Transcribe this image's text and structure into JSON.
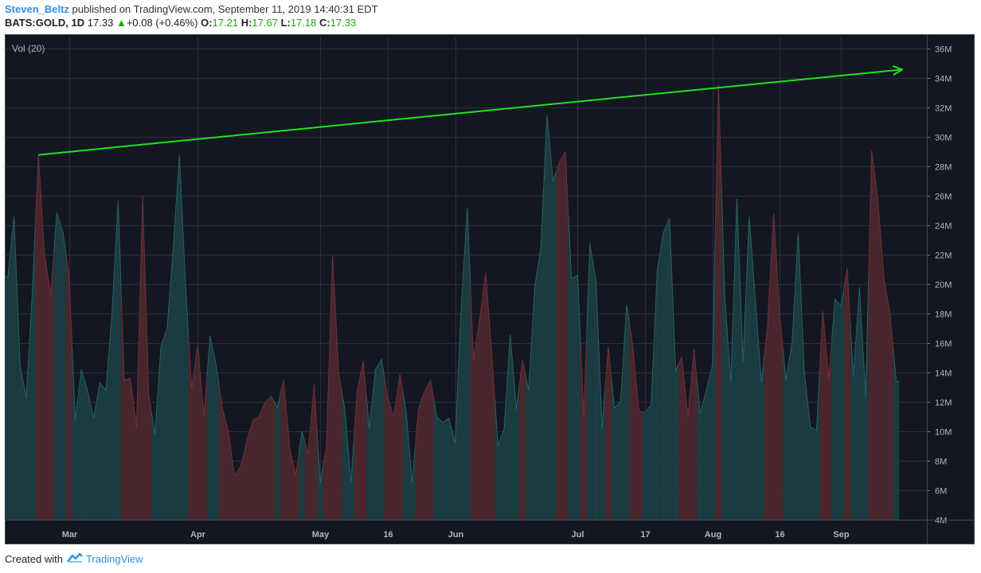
{
  "header": {
    "author": "Steven_Beltz",
    "published_text": "published on TradingView.com, September 11, 2019 14:40:31 EDT",
    "symbol": "BATS:GOLD, 1D",
    "last": "17.33",
    "change": "+0.08 (+0.46%)",
    "o_label": "O:",
    "o_value": "17.21",
    "h_label": "H:",
    "h_value": "17.67",
    "l_label": "L:",
    "l_value": "17.18",
    "c_label": "C:",
    "c_value": "17.33"
  },
  "footer": {
    "created_with": "Created with",
    "brand": "TradingView"
  },
  "colors": {
    "background": "#131722",
    "grid": "#2a2e39",
    "up_fill": "#1a3c40",
    "down_fill": "#4a262c",
    "up_line": "#2b5f63",
    "down_line": "#6e2f38",
    "trendline": "#22e01e",
    "axis_text": "#b2b5be"
  },
  "chart_data": {
    "type": "area",
    "indicator_label": "Vol (20)",
    "y_unit": "M",
    "ylim": [
      4,
      37
    ],
    "y_ticks": [
      4,
      6,
      8,
      10,
      12,
      14,
      16,
      18,
      20,
      22,
      24,
      26,
      28,
      30,
      32,
      34,
      36
    ],
    "y_tick_labels": [
      "4M",
      "6M",
      "8M",
      "10M",
      "12M",
      "14M",
      "16M",
      "18M",
      "20M",
      "22M",
      "24M",
      "26M",
      "28M",
      "30M",
      "32M",
      "34M",
      "36M"
    ],
    "x_ticks": [
      {
        "label": "Mar",
        "index": 10
      },
      {
        "label": "Apr",
        "index": 31
      },
      {
        "label": "May",
        "index": 51
      },
      {
        "label": "16",
        "index": 62
      },
      {
        "label": "Jun",
        "index": 73
      },
      {
        "label": "Jul",
        "index": 93
      },
      {
        "label": "17",
        "index": 104
      },
      {
        "label": "Aug",
        "index": 115
      },
      {
        "label": "16",
        "index": 126
      },
      {
        "label": "Sep",
        "index": 136
      }
    ],
    "x_range": [
      -0.5,
      150
    ],
    "volume_millions": [
      20.5,
      24.6,
      14.5,
      12.3,
      19.5,
      28.8,
      22.0,
      19.3,
      24.9,
      23.5,
      20.6,
      10.8,
      14.2,
      12.8,
      10.9,
      13.3,
      12.8,
      18.0,
      25.7,
      13.5,
      13.6,
      10.3,
      26.0,
      12.5,
      9.8,
      15.8,
      17.0,
      22.5,
      28.8,
      20.0,
      12.9,
      15.9,
      11.0,
      16.5,
      14.5,
      11.6,
      10.0,
      7.0,
      7.6,
      9.3,
      10.8,
      11.0,
      12.0,
      12.4,
      11.6,
      13.5,
      8.9,
      7.0,
      10.0,
      8.5,
      13.2,
      6.5,
      9.0,
      22.0,
      14.0,
      11.5,
      6.5,
      12.7,
      14.8,
      10.2,
      14.2,
      14.9,
      12.3,
      11.0,
      13.9,
      11.4,
      6.5,
      11.5,
      12.7,
      13.5,
      11.0,
      10.6,
      10.9,
      9.2,
      18.5,
      25.2,
      14.9,
      17.6,
      20.8,
      15.2,
      9.0,
      10.2,
      16.6,
      11.5,
      14.9,
      12.8,
      19.8,
      22.5,
      31.5,
      27.0,
      28.3,
      29.0,
      20.4,
      20.6,
      11.0,
      22.8,
      20.2,
      10.2,
      15.8,
      11.6,
      12.0,
      18.6,
      15.8,
      11.4,
      11.3,
      11.8,
      21.0,
      23.5,
      24.5,
      14.1,
      15.1,
      11.0,
      15.6,
      11.2,
      12.8,
      14.5,
      33.6,
      19.3,
      13.3,
      25.8,
      14.7,
      24.6,
      19.0,
      13.3,
      17.2,
      24.8,
      17.8,
      13.5,
      16.0,
      23.5,
      14.0,
      10.3,
      10.1,
      18.2,
      13.6,
      19.0,
      18.5,
      21.1,
      13.7,
      19.8,
      12.4,
      29.1,
      25.8,
      20.4,
      18.0,
      13.4
    ],
    "bar_direction": [
      "up",
      "up",
      "up",
      "up",
      "up",
      "down",
      "down",
      "down",
      "up",
      "up",
      "down",
      "up",
      "up",
      "up",
      "up",
      "up",
      "up",
      "up",
      "up",
      "down",
      "down",
      "down",
      "down",
      "down",
      "up",
      "up",
      "up",
      "up",
      "up",
      "up",
      "down",
      "down",
      "down",
      "up",
      "up",
      "down",
      "down",
      "down",
      "down",
      "down",
      "down",
      "down",
      "down",
      "down",
      "up",
      "down",
      "down",
      "down",
      "up",
      "down",
      "down",
      "up",
      "down",
      "down",
      "down",
      "up",
      "up",
      "down",
      "down",
      "up",
      "up",
      "up",
      "down",
      "down",
      "down",
      "up",
      "up",
      "down",
      "down",
      "down",
      "up",
      "up",
      "up",
      "up",
      "up",
      "up",
      "down",
      "down",
      "down",
      "down",
      "up",
      "up",
      "up",
      "up",
      "down",
      "up",
      "up",
      "up",
      "up",
      "up",
      "down",
      "down",
      "up",
      "up",
      "down",
      "up",
      "up",
      "up",
      "down",
      "up",
      "up",
      "up",
      "down",
      "down",
      "up",
      "up",
      "up",
      "up",
      "up",
      "up",
      "down",
      "down",
      "down",
      "up",
      "up",
      "up",
      "down",
      "up",
      "up",
      "up",
      "up",
      "up",
      "up",
      "up",
      "down",
      "down",
      "down",
      "up",
      "up",
      "up",
      "up",
      "up",
      "up",
      "down",
      "down",
      "up",
      "up",
      "down",
      "up",
      "up",
      "up",
      "down",
      "down",
      "down",
      "down",
      "up"
    ],
    "trendline": {
      "start": {
        "index": 5,
        "value": 28.8
      },
      "end": {
        "index": 146,
        "value": 34.6
      },
      "arrow": true
    }
  }
}
